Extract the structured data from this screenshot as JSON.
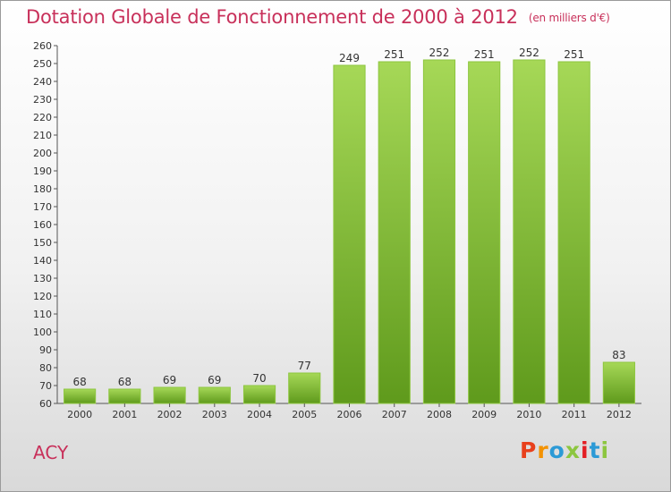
{
  "header": {
    "title": "Dotation Globale de Fonctionnement de 2000 à 2012",
    "unit_note": "(en milliers d'€)"
  },
  "footer": {
    "entity": "ACY"
  },
  "brand": {
    "logo_text": "Proxiti",
    "logo_colors": [
      "#e8401c",
      "#f39200",
      "#2c9ad6",
      "#8cc63f",
      "#e31e24",
      "#2c9ad6",
      "#8cc63f"
    ]
  },
  "colors": {
    "title": "#c8305a",
    "bar_top": "#a6d857",
    "bar_bottom": "#5f9a1c"
  },
  "chart_data": {
    "type": "bar",
    "title": "Dotation Globale de Fonctionnement de 2000 à 2012",
    "subtitle": "(en milliers d'€)",
    "categories": [
      "2000",
      "2001",
      "2002",
      "2003",
      "2004",
      "2005",
      "2006",
      "2007",
      "2008",
      "2009",
      "2010",
      "2011",
      "2012"
    ],
    "values": [
      68,
      68,
      69,
      69,
      70,
      77,
      249,
      251,
      252,
      251,
      252,
      251,
      83
    ],
    "xlabel": "",
    "ylabel": "",
    "ylim": [
      60,
      260
    ],
    "yticks": [
      60,
      70,
      80,
      90,
      100,
      110,
      120,
      130,
      140,
      150,
      160,
      170,
      180,
      190,
      200,
      210,
      220,
      230,
      240,
      250,
      260
    ],
    "grid": false,
    "legend": "none"
  }
}
